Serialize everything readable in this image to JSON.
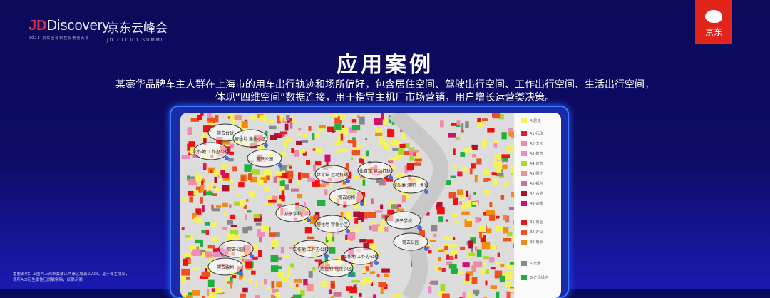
{
  "header": {
    "brand_main": "Discovery",
    "brand_jd": "JD",
    "brand_sub": "2023 京东全球科技探索者大会",
    "event_cn": "京东云峰会",
    "event_en": "JD CLOUD SUMMIT",
    "logo_text": "京东"
  },
  "title": "应用案例",
  "description": [
    "某豪华品牌车主人群在上海市的用车出行轨迹和场所偏好，包含居住空间、驾驶出行空间、工作出行空间、生活出行空间，",
    "体现“四维空间”数据连接，用于指导主机厂市场营销，用户增长运营类决策。"
  ],
  "legend": [
    {
      "label": "R-居住",
      "color": "#f5f25a"
    },
    {
      "label": "A1-行政",
      "color": "#e8173c"
    },
    {
      "label": "A2-文化",
      "color": "#f08aa8"
    },
    {
      "label": "A3-教育",
      "color": "#f08ac0"
    },
    {
      "label": "A4-体育",
      "color": "#a8d82a"
    },
    {
      "label": "A5-医疗",
      "color": "#f49090"
    },
    {
      "label": "A6-福利",
      "color": "#d07090"
    },
    {
      "label": "A7-古迹",
      "color": "#b01030"
    },
    {
      "label": "A9-宗教",
      "color": "#d0106a"
    },
    {
      "label": "B1-商业",
      "color": "#f01010"
    },
    {
      "label": "B2-办公",
      "color": "#f05020"
    },
    {
      "label": "B3-娱乐",
      "color": "#f58a10"
    },
    {
      "label": "S-交通",
      "color": "#888888"
    },
    {
      "label": "G-广场绿地",
      "color": "#20b040"
    }
  ],
  "map_labels": [
    {
      "text": "常去台球",
      "x": 45,
      "y": 22
    },
    {
      "text": "居住地 常住小区",
      "x": 80,
      "y": 30
    },
    {
      "text": "工作地 工作办公楼",
      "x": 25,
      "y": 48
    },
    {
      "text": "常去公园",
      "x": 100,
      "y": 58
    },
    {
      "text": "体育馆 运动打球",
      "x": 195,
      "y": 80
    },
    {
      "text": "体育馆 运动打球",
      "x": 255,
      "y": 75
    },
    {
      "text": "娱乐类 酒吧一条街",
      "x": 305,
      "y": 95
    },
    {
      "text": "常去购物",
      "x": 215,
      "y": 112
    },
    {
      "text": "孩子学校",
      "x": 140,
      "y": 135
    },
    {
      "text": "居住地 常住小区",
      "x": 195,
      "y": 150
    },
    {
      "text": "孩子学校",
      "x": 295,
      "y": 145
    },
    {
      "text": "常去公园",
      "x": 305,
      "y": 175
    },
    {
      "text": "工作地 工作办公楼",
      "x": 165,
      "y": 185
    },
    {
      "text": "工作地 工作办公楼",
      "x": 235,
      "y": 195
    },
    {
      "text": "居住地 常住小区",
      "x": 200,
      "y": 212
    },
    {
      "text": "常去公园",
      "x": 60,
      "y": 185
    },
    {
      "text": "常去购物",
      "x": 45,
      "y": 210
    }
  ],
  "note": [
    "重要说明：上图为上海市黄浦江两岸区域真实AOI，基于车主隐私，",
    "场所AOI衍生属性已脱敏剔除，仅供示例"
  ]
}
